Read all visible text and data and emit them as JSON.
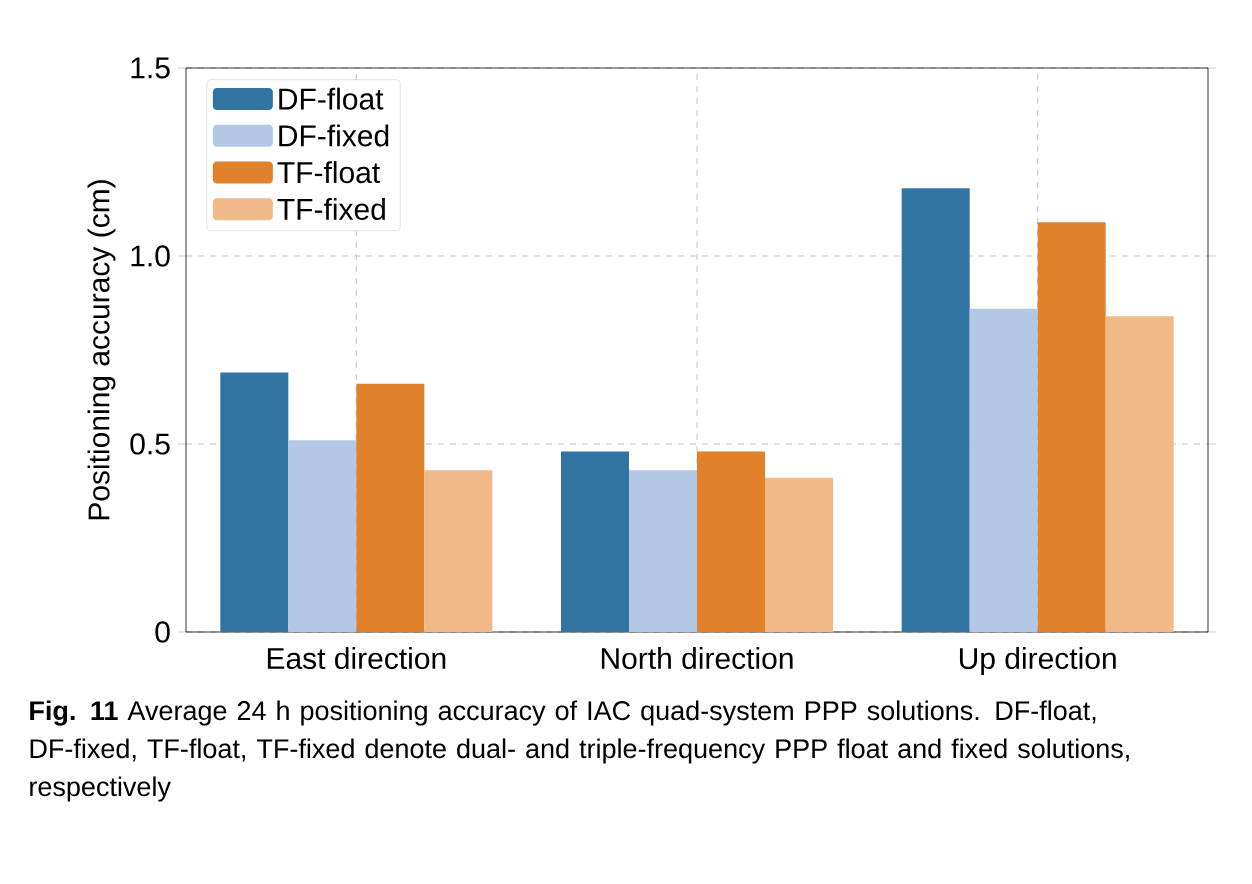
{
  "chart_data": {
    "type": "bar",
    "ylabel": "Positioning accuracy (cm)",
    "categories": [
      "East direction",
      "North direction",
      "Up direction"
    ],
    "series": [
      {
        "name": "DF-float",
        "color": "#3274a1",
        "values": [
          0.69,
          0.48,
          1.18
        ]
      },
      {
        "name": "DF-fixed",
        "color": "#b3c8e4",
        "values": [
          0.51,
          0.43,
          0.86
        ]
      },
      {
        "name": "TF-float",
        "color": "#e1812c",
        "values": [
          0.66,
          0.48,
          1.09
        ]
      },
      {
        "name": "TF-fixed",
        "color": "#f0b987",
        "values": [
          0.43,
          0.41,
          0.84
        ]
      }
    ],
    "ylim": [
      0,
      1.5
    ],
    "yticks": [
      0,
      0.5,
      {
        "value": 1,
        "label": "1.0"
      },
      1.5
    ],
    "grid": true,
    "legend": "top left",
    "annotations": [
      "**Fig. 11**  Average 24 h positioning accuracy of IAC quad-system PPP solutions. DF-float, DF-fixed, TF-float, TF-fixed denote dual- and triple-frequency PPP float and fixed solutions, respectively"
    ]
  }
}
